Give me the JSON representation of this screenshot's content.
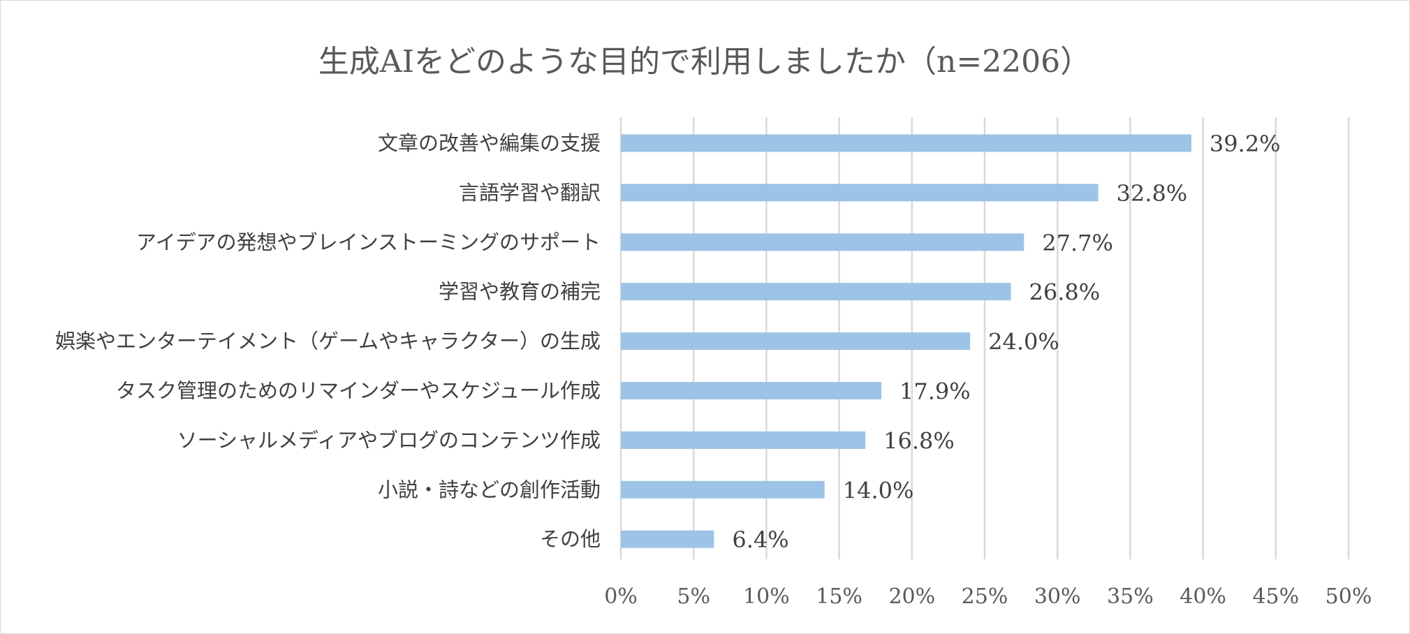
{
  "chart_data": {
    "type": "bar",
    "orientation": "horizontal",
    "title": "生成AIをどのような目的で利用しましたか（n=2206）",
    "categories": [
      "文章の改善や編集の支援",
      "言語学習や翻訳",
      "アイデアの発想やブレインストーミングのサポート",
      "学習や教育の補完",
      "娯楽やエンターテイメント（ゲームやキャラクター）の生成",
      "タスク管理のためのリマインダーやスケジュール作成",
      "ソーシャルメディアやブログのコンテンツ作成",
      "小説・詩などの創作活動",
      "その他"
    ],
    "values": [
      39.2,
      32.8,
      27.7,
      26.8,
      24.0,
      17.9,
      16.8,
      14.0,
      6.4
    ],
    "value_labels": [
      "39.2%",
      "32.8%",
      "27.7%",
      "26.8%",
      "24.0%",
      "17.9%",
      "16.8%",
      "14.0%",
      "6.4%"
    ],
    "xlim": [
      0,
      50
    ],
    "x_ticks": [
      "0%",
      "5%",
      "10%",
      "15%",
      "20%",
      "25%",
      "30%",
      "35%",
      "40%",
      "45%",
      "50%"
    ],
    "xlabel": "",
    "ylabel": "",
    "grid": "vertical",
    "legend": "none",
    "bar_color": "#9dc3e6"
  }
}
